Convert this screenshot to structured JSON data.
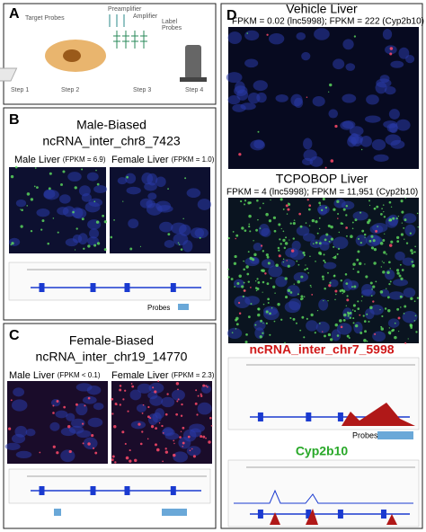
{
  "panels": {
    "a": {
      "letter": "A",
      "target_probes": "Target Probes",
      "preamplifier": "Preamplifier",
      "amplifier": "Amplifier",
      "label": "Label",
      "probes": "Probes",
      "steps": [
        "Step 1",
        "Step 2",
        "Step 3",
        "Step 4"
      ]
    },
    "b": {
      "letter": "B",
      "title": "Male-Biased",
      "gene": "ncRNA_inter_chr8_7423",
      "left_label": "Male Liver",
      "left_fpkm": "(FPKM = 6.9)",
      "right_label": "Female Liver",
      "right_fpkm": "(FPKM = 1.0)",
      "probes": "Probes"
    },
    "c": {
      "letter": "C",
      "title": "Female-Biased",
      "gene": "ncRNA_inter_chr19_14770",
      "left_label": "Male Liver",
      "left_fpkm": "(FPKM < 0.1)",
      "right_label": "Female Liver",
      "right_fpkm": "(FPKM = 2.3)"
    },
    "d": {
      "letter": "D",
      "vehicle_title": "Vehicle Liver",
      "vehicle_fpkm": "FPKM = 0.02 (lnc5998); FPKM = 222 (Cyp2b10)",
      "tcpobop_title": "TCPOBOP Liver",
      "tcpobop_fpkm": "FPKM = 4 (lnc5998); FPKM = 11,951 (Cyp2b10)",
      "gene1": "ncRNA_inter_chr7_5998",
      "probes": "Probes",
      "gene2": "Cyp2b10"
    }
  }
}
